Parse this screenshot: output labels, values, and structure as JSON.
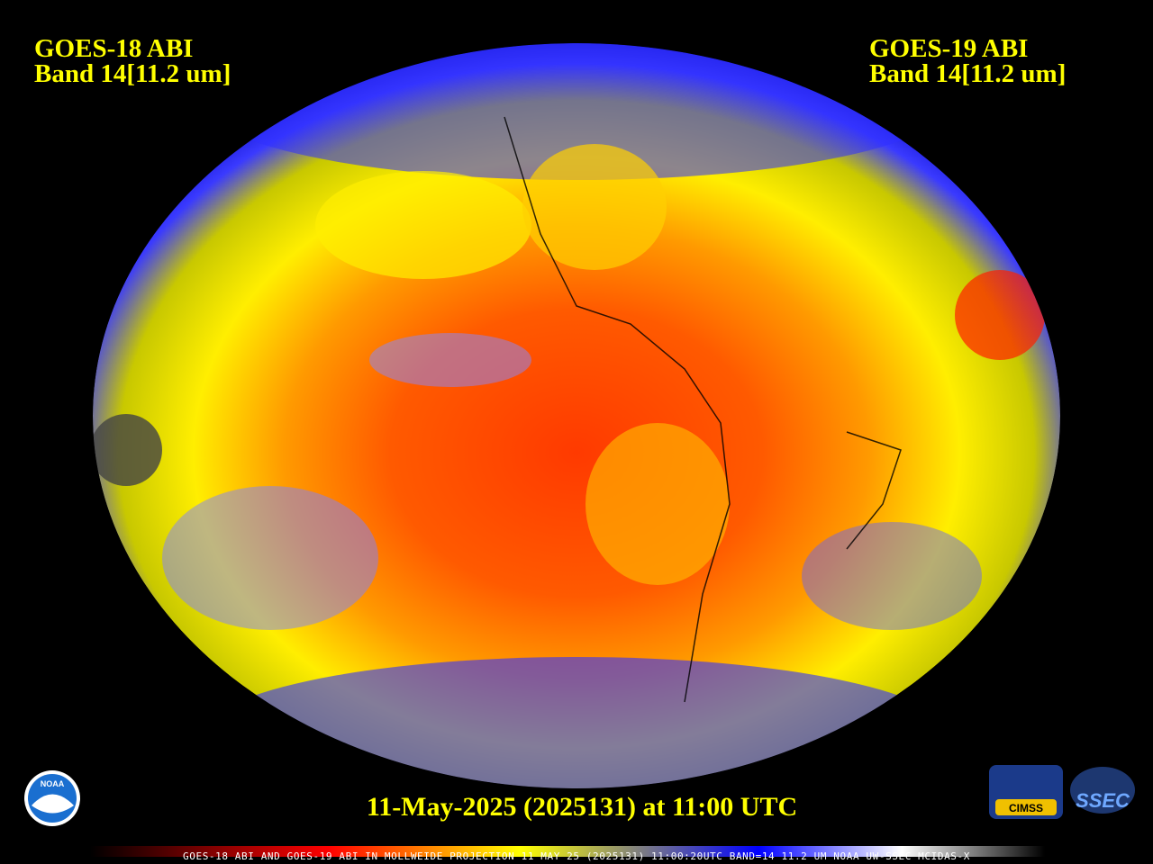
{
  "header": {
    "left": {
      "line1": "GOES-18 ABI",
      "line2": "Band 14[11.2 um]"
    },
    "right": {
      "line1": "GOES-19 ABI",
      "line2": "Band 14[11.2 um]"
    }
  },
  "timestamp": "11-May-2025 (2025131) at 11:00 UTC",
  "caption": "GOES-18 ABI AND GOES-19 ABI IN MOLLWEIDE PROJECTION 11 MAY 25 (2025131) 11:00:20UTC BAND=14 11.2 UM NOAA UW-SSEC MCIDAS-X",
  "logos": {
    "noaa": "NOAA",
    "cimss": "CIMSS",
    "ssec": "SSEC"
  }
}
